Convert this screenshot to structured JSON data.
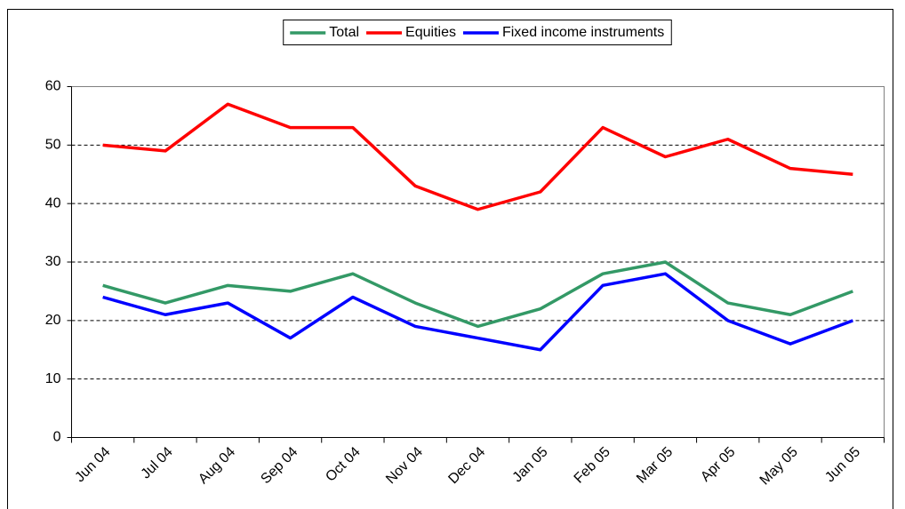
{
  "chart_data": {
    "type": "line",
    "categories": [
      "Jun 04",
      "Jul 04",
      "Aug 04",
      "Sep 04",
      "Oct 04",
      "Nov 04",
      "Dec 04",
      "Jan 05",
      "Feb 05",
      "Mar 05",
      "Apr 05",
      "May 05",
      "Jun 05"
    ],
    "series": [
      {
        "name": "Total",
        "color": "#339966",
        "values": [
          26,
          23,
          26,
          25,
          28,
          23,
          19,
          22,
          28,
          30,
          23,
          21,
          25
        ]
      },
      {
        "name": "Equities",
        "color": "#ff0000",
        "values": [
          50,
          49,
          57,
          53,
          53,
          43,
          39,
          42,
          53,
          48,
          51,
          46,
          45
        ]
      },
      {
        "name": "Fixed income instruments",
        "color": "#0000ff",
        "values": [
          24,
          21,
          23,
          17,
          24,
          19,
          17,
          15,
          26,
          28,
          20,
          16,
          20
        ]
      }
    ],
    "ylim": [
      0,
      60
    ],
    "yticks": [
      0,
      10,
      20,
      30,
      40,
      50,
      60
    ],
    "grid": true,
    "legend": "top"
  }
}
